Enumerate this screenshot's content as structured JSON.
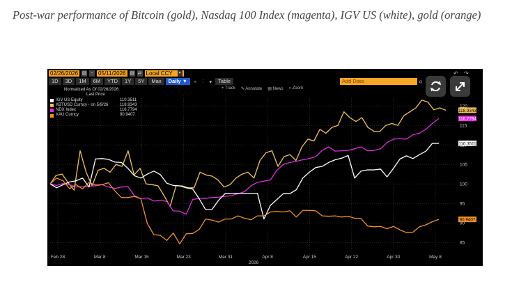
{
  "caption": "Post-war performance of Bitcoin (gold), Nasdaq 100 Index (magenta), IGV US (white), gold (orange)",
  "toolbar": {
    "start_date": "02/26/2026",
    "end_date": "05/11/2026",
    "currency": "Local CCY",
    "periods": [
      "1D",
      "3D",
      "1M",
      "6M",
      "YTD",
      "1Y",
      "5Y",
      "Max"
    ],
    "frequency": "Daily ▼",
    "table_label": "Table",
    "add_data_placeholder": "Add Data",
    "tools": [
      "Track",
      "Annotate",
      "News",
      "Zoom"
    ]
  },
  "legend": {
    "header1": "Normalized As Of 02/26/2026",
    "header2": "Last Price",
    "items": [
      {
        "name": "IGV US Equity",
        "value": "110.3511",
        "color": "#ffffff"
      },
      {
        "name": "XBTUSD Curncy - on 5/9/26",
        "value": "118.9343",
        "color": "#f0c35a"
      },
      {
        "name": "NDX Index",
        "value": "116.7794",
        "value_color": "#ff3cff",
        "color": "#e12ce0"
      },
      {
        "name": "XAU Curncy",
        "value": "90.9407",
        "color": "#f0912b"
      }
    ]
  },
  "chart_data": {
    "type": "line",
    "x_labels": [
      "Feb 28",
      "Mar 8",
      "Mar 15",
      "Mar 23",
      "Mar 31",
      "Apr 8",
      "Apr 15",
      "Apr 22",
      "Apr 30",
      "May 8"
    ],
    "x_year_label": "2026",
    "y_ticks": [
      85,
      90,
      95,
      100,
      105,
      110,
      115,
      120
    ],
    "ylim": [
      82,
      122
    ],
    "series": [
      {
        "name": "XBTUSD Curncy",
        "color": "#f0c35a",
        "values": [
          100,
          102.2,
          102.5,
          100.3,
          98.4,
          108.5,
          103,
          99.5,
          103.5,
          104,
          103,
          105,
          104.5,
          108.5,
          102.3,
          104,
          100,
          99.8,
          99.5,
          97,
          94.2,
          99.5,
          99.5,
          99,
          99,
          103,
          102.3,
          102,
          101,
          99.2,
          99.8,
          101.5,
          102.5,
          103,
          101.5,
          106,
          108,
          108.5,
          104.5,
          107,
          107.5,
          106,
          109.5,
          111.5,
          111,
          114,
          113,
          114.5,
          115,
          118.5,
          117,
          116,
          117,
          114.5,
          113.5,
          113.5,
          115,
          115.5,
          115,
          117.5,
          118.5,
          119.5,
          121.5,
          121,
          119,
          119.5,
          118.9
        ]
      },
      {
        "name": "NDX Index",
        "color": "#e12ce0",
        "values": [
          100,
          99.6,
          100.1,
          99.8,
          99.2,
          99.3,
          99.4,
          99.5,
          99.8,
          99.2,
          98.8,
          99.2,
          99.3,
          97,
          96.2,
          96.4,
          95.6,
          95.8,
          95.5,
          93.1,
          93,
          92.2,
          96,
          96.3,
          96.3,
          96.5,
          96.6,
          96.8,
          97,
          97.5,
          98,
          99.5,
          100.4,
          100.7,
          101,
          103.5,
          105,
          105.5,
          105.8,
          106.2,
          106.5,
          107,
          108.6,
          109.5,
          108.4,
          108.5,
          108.6,
          109,
          109.5,
          108.5,
          108.6,
          109,
          110.6,
          111.5,
          111.6,
          111.5,
          112.6,
          113,
          114,
          115.5,
          116.8
        ]
      },
      {
        "name": "IGV US Equity",
        "color": "#ffffff",
        "values": [
          100,
          99,
          99.8,
          100.5,
          100.8,
          101.5,
          99.2,
          106.4,
          106.5,
          106.3,
          105.6,
          105.5,
          104,
          102.1,
          101.5,
          102.5,
          103.3,
          102.4,
          100.2,
          99.6,
          99.5,
          99,
          98.7,
          96.2,
          93.4,
          93.5,
          95.8,
          97.5,
          97.6,
          97.6,
          97.6,
          97.6,
          97.6,
          91,
          94.5,
          96,
          97.5,
          97.5,
          98.5,
          101.5,
          103,
          104.2,
          104.5,
          105.5,
          106.2,
          106.6,
          107.3,
          101.5,
          103.3,
          103.6,
          103.6,
          103.8,
          101.8,
          104,
          106.4,
          107.2,
          106.5,
          107.5,
          108.4,
          110.4,
          110.4
        ]
      },
      {
        "name": "XAU Curncy",
        "color": "#f0912b",
        "values": [
          100,
          101.5,
          100.8,
          98.8,
          99.8,
          98.7,
          100.4,
          99.7,
          99.8,
          100.3,
          98.2,
          96.5,
          96.5,
          96.8,
          96.2,
          89.8,
          87,
          86.8,
          85.5,
          87.4,
          84.6,
          87.2,
          87.3,
          88.3,
          91,
          90.7,
          90.2,
          91,
          91,
          91.8,
          91.2,
          90.8,
          91.8,
          91.8,
          92.8,
          92.9,
          92.8,
          93.1,
          91.5,
          93.2,
          93.2,
          93.1,
          91.8,
          91.7,
          91.8,
          91.5,
          91.7,
          91.2,
          91.1,
          89.2,
          89,
          89.1,
          88.5,
          89.1,
          88.2,
          87.5,
          87.6,
          89,
          89.5,
          90.3,
          90.9
        ]
      }
    ],
    "last_price_labels": [
      "118.9343",
      "116.7794",
      "110.3511",
      "90.9407"
    ]
  }
}
